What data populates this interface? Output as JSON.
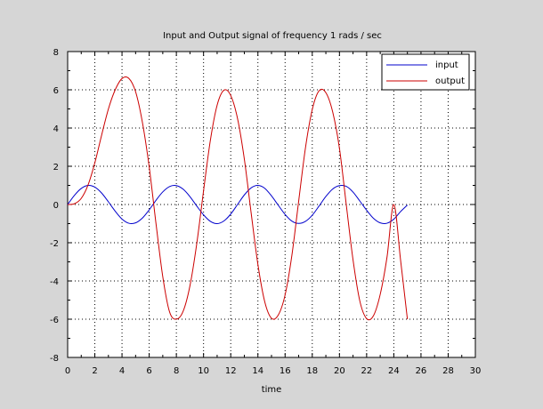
{
  "chart_data": {
    "type": "line",
    "title": "Input and Output signal of frequency 1 rads / sec",
    "xlabel": "time",
    "ylabel": "",
    "xlim": [
      0,
      30
    ],
    "ylim": [
      -8,
      8
    ],
    "x_ticks": [
      0,
      2,
      4,
      6,
      8,
      10,
      12,
      14,
      16,
      18,
      20,
      22,
      24,
      26,
      28,
      30
    ],
    "y_ticks": [
      -8,
      -6,
      -4,
      -2,
      0,
      2,
      4,
      6,
      8
    ],
    "grid": true,
    "legend_position": "top-right",
    "x_step": 0.5,
    "series": [
      {
        "name": "input",
        "color": "#0000cc",
        "x_start": 0,
        "values": [
          0.0,
          0.48,
          0.84,
          1.0,
          0.91,
          0.6,
          0.14,
          -0.35,
          -0.76,
          -0.98,
          -0.96,
          -0.71,
          -0.28,
          0.22,
          0.66,
          0.94,
          0.99,
          0.8,
          0.41,
          -0.08,
          -0.54,
          -0.88,
          -1.0,
          -0.86,
          -0.5,
          -0.0,
          0.5,
          0.87,
          1.0,
          0.85,
          0.45,
          -0.04,
          -0.52,
          -0.87,
          -0.99,
          -0.88,
          -0.56,
          -0.08,
          0.42,
          0.81,
          0.99,
          0.95,
          0.65,
          0.18,
          -0.3,
          -0.72,
          -0.96,
          -0.98,
          -0.77,
          -0.37,
          -0.03
        ]
      },
      {
        "name": "output",
        "color": "#cc0000",
        "x_start": 0,
        "values": [
          0.0,
          0.04,
          0.32,
          1.02,
          2.18,
          3.63,
          5.0,
          6.0,
          6.59,
          6.6,
          5.9,
          4.3,
          1.97,
          -0.99,
          -3.78,
          -5.62,
          -6.0,
          -5.58,
          -4.25,
          -2.05,
          0.72,
          3.35,
          5.2,
          5.98,
          5.7,
          4.5,
          2.38,
          -0.43,
          -3.14,
          -5.08,
          -5.95,
          -5.78,
          -4.73,
          -2.66,
          0.18,
          2.97,
          4.97,
          5.95,
          5.85,
          4.85,
          2.94,
          0.0,
          -2.9,
          -5.05,
          -5.97,
          -5.82,
          -4.7,
          -2.75,
          0.0,
          -2.92,
          -6.0
        ]
      }
    ]
  }
}
